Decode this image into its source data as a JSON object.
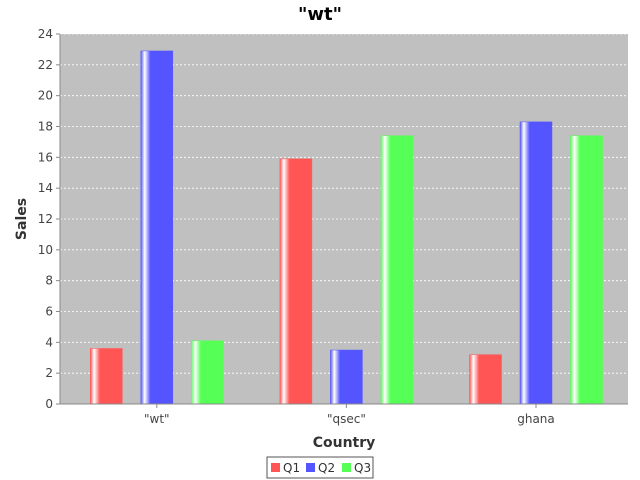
{
  "chart_data": {
    "type": "bar",
    "title": "\"wt\"",
    "xlabel": "Country",
    "ylabel": "Sales",
    "categories": [
      "\"wt\"",
      "\"qsec\"",
      "ghana"
    ],
    "series": [
      {
        "name": "Q1",
        "values": [
          3.6,
          15.9,
          3.2
        ],
        "color": "#ff5555"
      },
      {
        "name": "Q2",
        "values": [
          22.9,
          3.5,
          18.3
        ],
        "color": "#5555ff"
      },
      {
        "name": "Q3",
        "values": [
          4.1,
          17.4,
          17.4
        ],
        "color": "#55ff55"
      }
    ],
    "ylim": [
      0,
      24
    ],
    "yticks": [
      "0",
      "2",
      "4",
      "6",
      "8",
      "10",
      "12",
      "14",
      "16",
      "18",
      "20",
      "22",
      "24"
    ],
    "grid": true,
    "legend_position": "bottom"
  },
  "colors": {
    "plot_background": "#c0c0c0",
    "gridline": "#ffffff",
    "axis": "#888888"
  }
}
